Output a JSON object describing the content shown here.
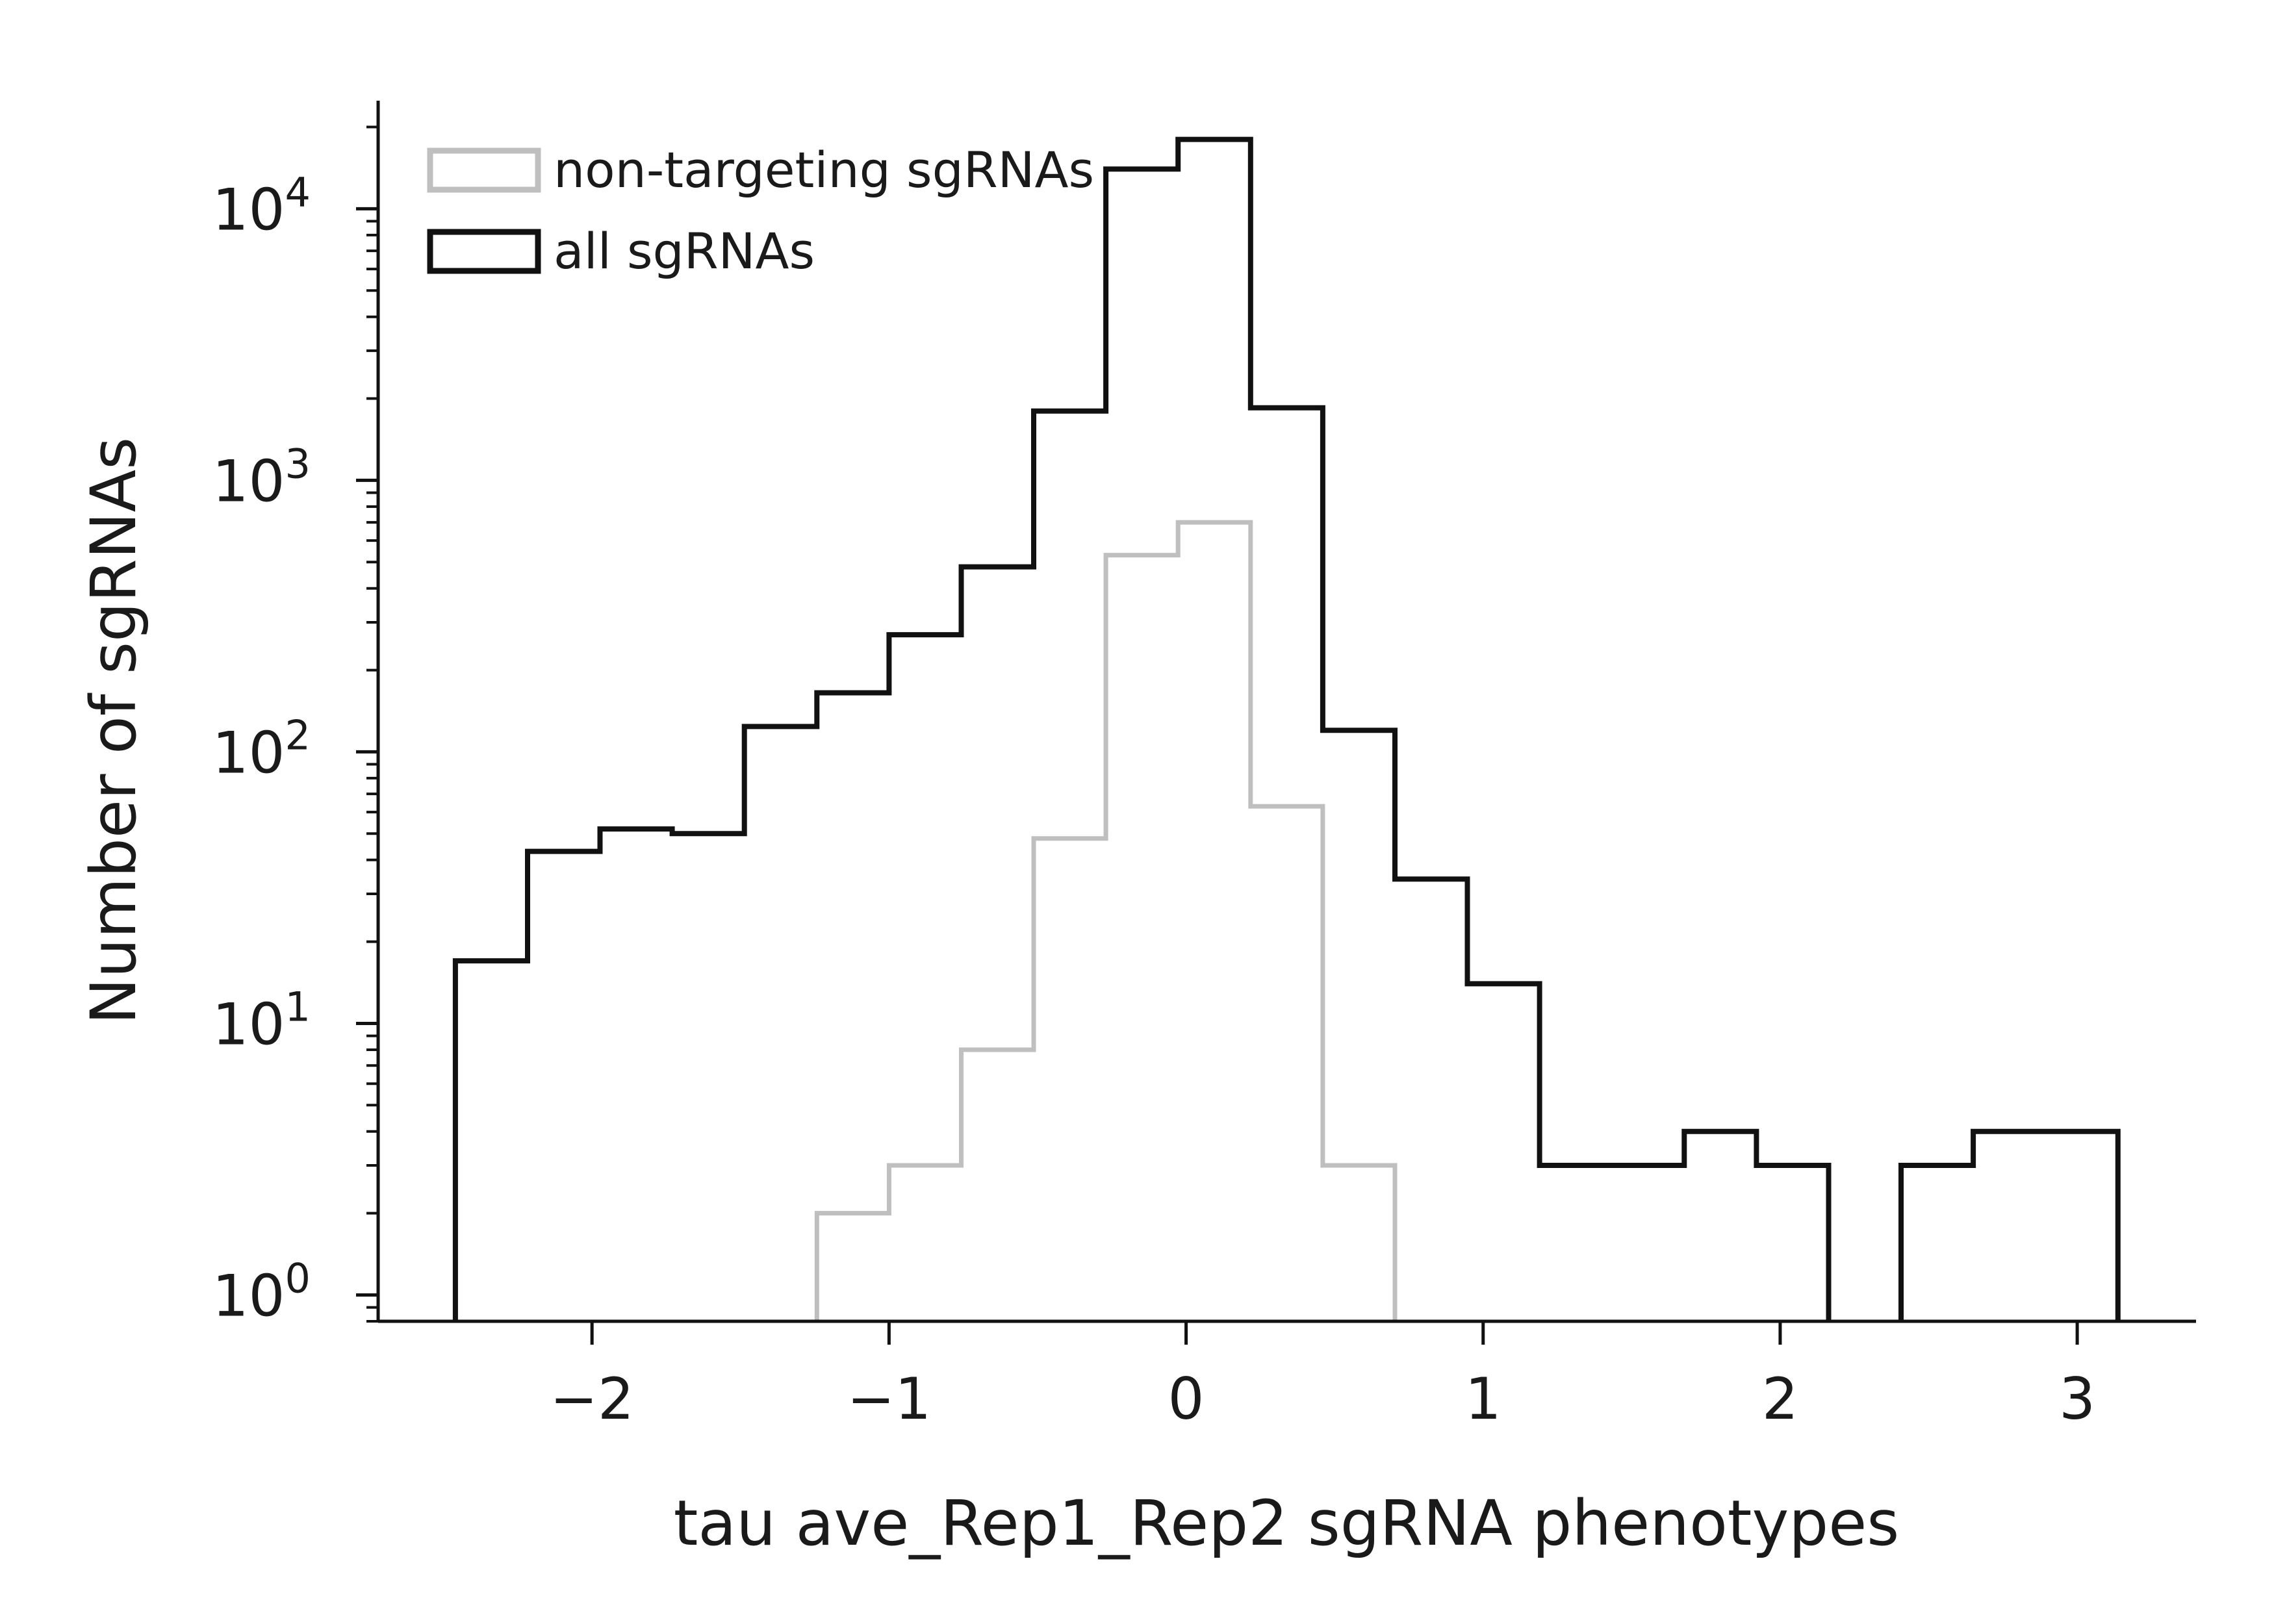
{
  "chart_data": {
    "type": "histogram",
    "title": "",
    "xlabel": "tau ave_Rep1_Rep2 sgRNA phenotypes",
    "ylabel": "Number of sgRNAs",
    "xlim": [
      -2.72,
      3.4
    ],
    "ylim": [
      0.8,
      25000
    ],
    "yscale": "log",
    "x_ticks": [
      -2,
      -1,
      0,
      1,
      2,
      3
    ],
    "x_tick_labels": [
      "−2",
      "−1",
      "0",
      "1",
      "2",
      "3"
    ],
    "y_ticks": [
      1,
      10,
      100,
      1000,
      10000
    ],
    "y_tick_labels": [
      {
        "base": "10",
        "exp": "0"
      },
      {
        "base": "10",
        "exp": "1"
      },
      {
        "base": "10",
        "exp": "2"
      },
      {
        "base": "10",
        "exp": "3"
      },
      {
        "base": "10",
        "exp": "4"
      }
    ],
    "grid": false,
    "legend": {
      "placement": "top-left"
    },
    "bin_edges": [
      -2.46,
      -2.217,
      -1.973,
      -1.73,
      -1.487,
      -1.243,
      -1.0,
      -0.757,
      -0.513,
      -0.27,
      -0.027,
      0.217,
      0.46,
      0.703,
      0.947,
      1.19,
      1.433,
      1.677,
      1.92,
      2.163,
      2.407,
      2.65,
      2.893,
      3.137
    ],
    "series": [
      {
        "name": "non-targeting sgRNAs",
        "color": "#bfbfbf",
        "counts": [
          0,
          0,
          0,
          0,
          0,
          2,
          3,
          8,
          48,
          530,
          700,
          63,
          3,
          0,
          0,
          0,
          0,
          0,
          0,
          0,
          0,
          0,
          0
        ]
      },
      {
        "name": "all sgRNAs",
        "color": "#111111",
        "counts": [
          17,
          43,
          52,
          50,
          124,
          165,
          270,
          480,
          1800,
          14000,
          18000,
          1850,
          120,
          34,
          14,
          3,
          3,
          4,
          3,
          0,
          3,
          4,
          4
        ]
      }
    ]
  }
}
